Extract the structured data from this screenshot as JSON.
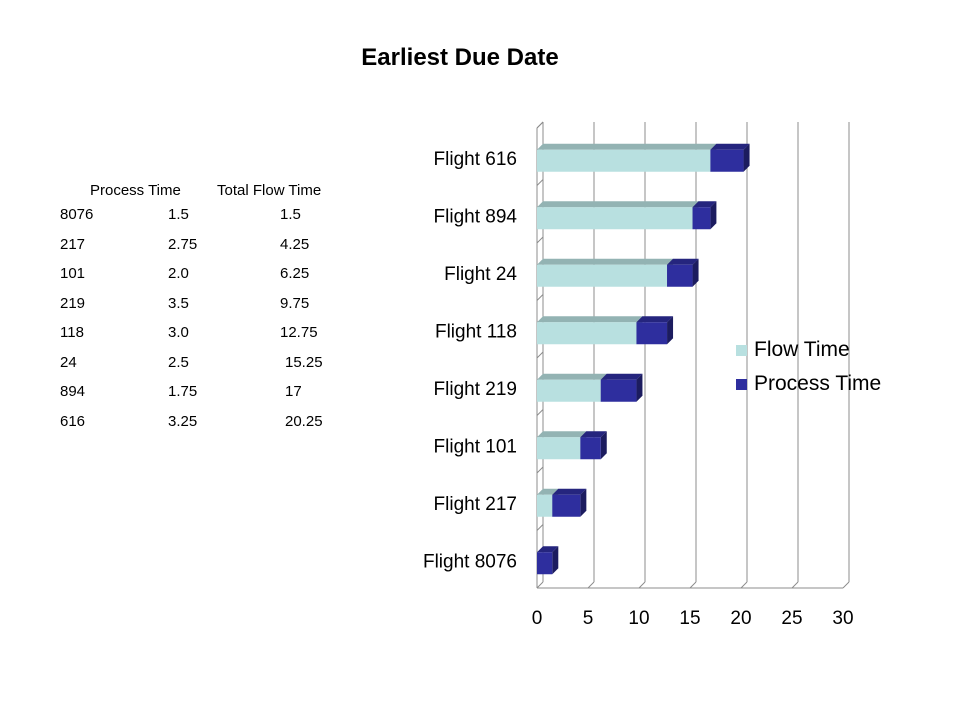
{
  "title": "Earliest Due Date",
  "table": {
    "headers": [
      "Process Time",
      "Total Flow Time"
    ],
    "rows": [
      [
        "8076",
        "1.5",
        "1.5"
      ],
      [
        "217",
        "2.75",
        "4.25"
      ],
      [
        "101",
        "2.0",
        "6.25"
      ],
      [
        "219",
        "3.5",
        "9.75"
      ],
      [
        "118",
        "3.0",
        "12.75"
      ],
      [
        "24",
        "2.5",
        "15.25"
      ],
      [
        "894",
        "1.75",
        "17"
      ],
      [
        "616",
        "3.25",
        "20.25"
      ]
    ]
  },
  "chart_data": {
    "type": "bar",
    "orientation": "horizontal",
    "stacked": true,
    "title": "Earliest Due Date",
    "categories": [
      "Flight 8076",
      "Flight 217",
      "Flight 101",
      "Flight 219",
      "Flight 118",
      "Flight 24",
      "Flight 894",
      "Flight 616"
    ],
    "series": [
      {
        "name": "Flow Time",
        "values": [
          0,
          1.5,
          4.25,
          6.25,
          9.75,
          12.75,
          15.25,
          17
        ],
        "color": "#b8e0e0"
      },
      {
        "name": "Process Time",
        "values": [
          1.5,
          2.75,
          2.0,
          3.5,
          3.0,
          2.5,
          1.75,
          3.25
        ],
        "color": "#2e2e9e"
      }
    ],
    "xlim": [
      0,
      30
    ],
    "xticks": [
      "0",
      "5",
      "10",
      "15",
      "20",
      "25",
      "30"
    ],
    "grid": true,
    "legend": "right"
  }
}
